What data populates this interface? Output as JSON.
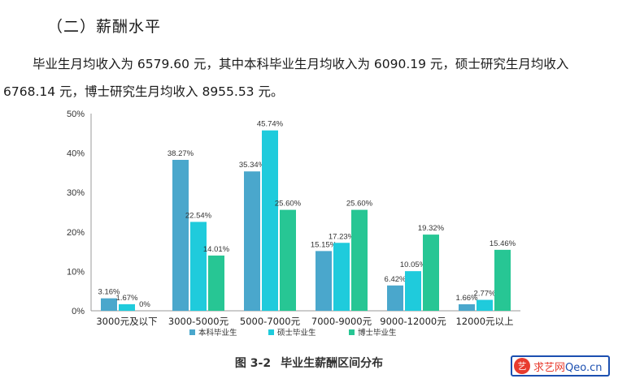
{
  "heading": "（二）薪酬水平",
  "paragraph": {
    "line1": "毕业生月均收入为 6579.60 元，其中本科毕业生月均收入为 6090.19 元，硕士研究生月均收入",
    "line2": "6768.14 元，博士研究生月均收入 8955.53 元。"
  },
  "chart_data": {
    "type": "bar",
    "categories": [
      "3000元及以下",
      "3000-5000元",
      "5000-7000元",
      "7000-9000元",
      "9000-12000元",
      "12000元以上"
    ],
    "series": [
      {
        "name": "本科毕业生",
        "color": "#4aa7cc",
        "values": [
          3.16,
          38.27,
          35.34,
          15.15,
          6.42,
          1.66
        ]
      },
      {
        "name": "硕士毕业生",
        "color": "#1fcbdc",
        "values": [
          1.67,
          22.54,
          45.74,
          17.23,
          10.05,
          2.77
        ]
      },
      {
        "name": "博士毕业生",
        "color": "#27c694",
        "values": [
          0,
          14.01,
          25.6,
          25.6,
          19.32,
          15.46
        ]
      }
    ],
    "labels": [
      [
        "3.16%",
        "38.27%",
        "35.34%",
        "15.15%",
        "6.42%",
        "1.66%"
      ],
      [
        "1.67%",
        "22.54%",
        "45.74%",
        "17.23%",
        "10.05%",
        "2.77%"
      ],
      [
        "0%",
        "14.01%",
        "25.60%",
        "25.60%",
        "19.32%",
        "15.46%"
      ]
    ],
    "yticks": [
      "0%",
      "10%",
      "20%",
      "30%",
      "40%",
      "50%"
    ],
    "ylim": [
      0,
      50
    ],
    "legend": "bottom"
  },
  "caption": {
    "number": "图 3-2",
    "title": "毕业生薪酬区间分布"
  },
  "watermark": {
    "logo": "艺",
    "name": "求艺网",
    "domain": "Qeo.cn"
  }
}
